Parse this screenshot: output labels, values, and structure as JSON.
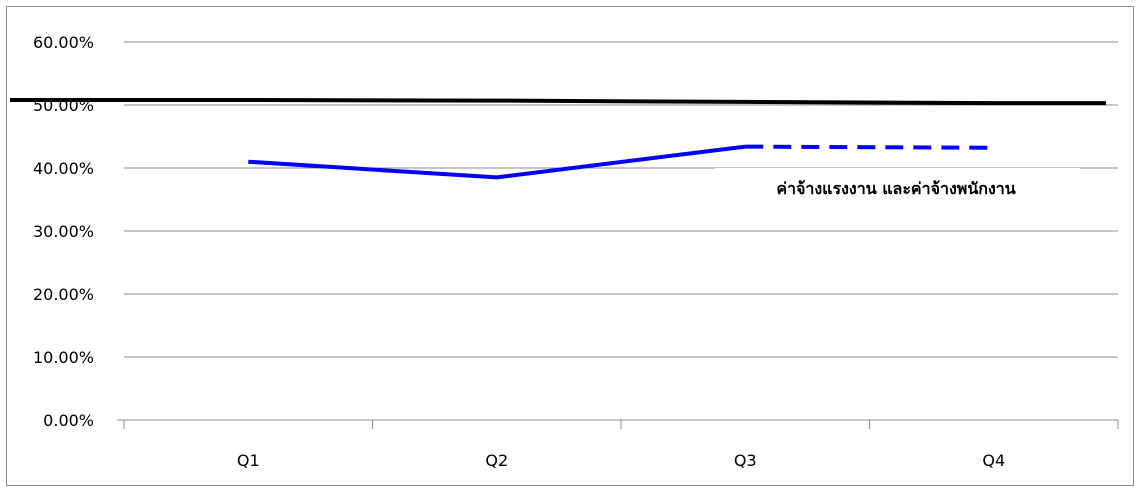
{
  "chart_data": {
    "type": "line",
    "title": "",
    "xlabel": "",
    "ylabel": "",
    "categories": [
      "Q1",
      "Q2",
      "Q3",
      "Q4"
    ],
    "ylim": [
      0,
      0.6
    ],
    "yticks": [
      0,
      0.1,
      0.2,
      0.3,
      0.4,
      0.5,
      0.6
    ],
    "ytick_labels": [
      "0.00%",
      "10.00%",
      "20.00%",
      "30.00%",
      "40.00%",
      "50.00%",
      "60.00%"
    ],
    "grid": true,
    "legend": "none",
    "series": [
      {
        "values": [
          0.508,
          0.507,
          0.505,
          0.503
        ],
        "color": "#000000",
        "style": "solid"
      },
      {
        "values": [
          0.41,
          0.385,
          0.434,
          null
        ],
        "color": "#0000ff",
        "style": "solid"
      },
      {
        "values": [
          null,
          null,
          0.434,
          0.432
        ],
        "color": "#0000ff",
        "style": "dashed"
      }
    ],
    "annotations": [
      {
        "text": "ค่าจ้างแรงงาน และค่าจ้างพนักงาน"
      }
    ]
  }
}
